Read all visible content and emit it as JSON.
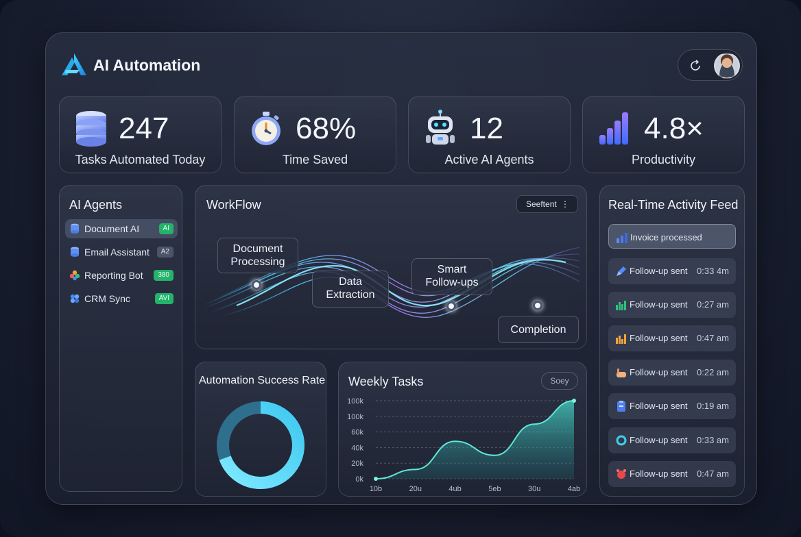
{
  "header": {
    "title": "AI Automation"
  },
  "stats": [
    {
      "value": "247",
      "label": "Tasks Automated Today",
      "icon": "database-icon"
    },
    {
      "value": "68%",
      "label": "Time Saved",
      "icon": "stopwatch-icon"
    },
    {
      "value": "12",
      "label": "Active AI Agents",
      "icon": "robot-icon"
    },
    {
      "value": "4.8×",
      "label": "Productivity",
      "icon": "bar-chart-icon"
    }
  ],
  "agents": {
    "title": "AI Agents",
    "items": [
      {
        "name": "Document AI",
        "badge": "AI",
        "badge_color": "#24b36b"
      },
      {
        "name": "Email Assistant",
        "badge": "A2",
        "badge_color": "grey"
      },
      {
        "name": "Reporting Bot",
        "badge": "380",
        "badge_color": "#24b36b"
      },
      {
        "name": "CRM Sync",
        "badge": "AVI",
        "badge_color": "#24b36b"
      }
    ]
  },
  "workflow": {
    "title": "WorkFlow",
    "select": "Seeftent",
    "nodes": [
      "Document\nProcessing",
      "Data\nExtraction",
      "Smart\nFollow-ups",
      "Completion"
    ]
  },
  "success": {
    "title": "Automation Success Rate"
  },
  "weekly": {
    "title": "Weekly Tasks",
    "button": "Soey"
  },
  "chart_data": {
    "type": "area",
    "title": "Weekly Tasks",
    "x": [
      "10b",
      "20u",
      "4ub",
      "5eb",
      "30u",
      "4ab"
    ],
    "y_ticks": [
      "0k",
      "20k",
      "40k",
      "60k",
      "100k",
      "100k"
    ],
    "series": [
      {
        "values": [
          0,
          12,
          48,
          30,
          70,
          100
        ]
      }
    ],
    "ylim": [
      0,
      100
    ],
    "grid": true
  },
  "feed": {
    "title": "Real-Time Activity Feed",
    "items": [
      {
        "label": "Invoice processed",
        "time": "",
        "icon": "bar-chart-icon"
      },
      {
        "label": "Follow-up sent",
        "time": "0:33 4m",
        "icon": "pen-icon"
      },
      {
        "label": "Follow-up sent",
        "time": "0:27 am",
        "icon": "green-chart-icon"
      },
      {
        "label": "Follow-up sent",
        "time": "0:47 am",
        "icon": "orange-chart-icon"
      },
      {
        "label": "Follow-up sent",
        "time": "0:22 am",
        "icon": "hand-icon"
      },
      {
        "label": "Follow-up sent",
        "time": "0:19 am",
        "icon": "clipboard-icon"
      },
      {
        "label": "Follow-up sent",
        "time": "0:33 am",
        "icon": "ring-icon"
      },
      {
        "label": "Follow-up sent",
        "time": "0:47 am",
        "icon": "alarm-icon"
      }
    ]
  }
}
